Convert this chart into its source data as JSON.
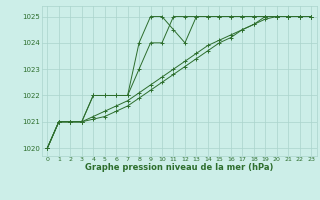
{
  "title": "Graphe pression niveau de la mer (hPa)",
  "bg_color": "#cceee8",
  "grid_color": "#aad4cc",
  "line_color": "#2d6e2d",
  "xlim": [
    -0.5,
    23.5
  ],
  "ylim": [
    1019.7,
    1025.4
  ],
  "yticks": [
    1020,
    1021,
    1022,
    1023,
    1024,
    1025
  ],
  "xticks": [
    0,
    1,
    2,
    3,
    4,
    5,
    6,
    7,
    8,
    9,
    10,
    11,
    12,
    13,
    14,
    15,
    16,
    17,
    18,
    19,
    20,
    21,
    22,
    23
  ],
  "series": [
    [
      1020.0,
      1021.0,
      1021.0,
      1021.0,
      1022.0,
      1022.0,
      1022.0,
      1022.0,
      1024.0,
      1025.0,
      1025.0,
      1024.5,
      1024.0,
      1025.0,
      1025.0,
      1025.0,
      1025.0,
      1025.0,
      1025.0,
      1025.0,
      1025.0,
      1025.0,
      1025.0,
      1025.0
    ],
    [
      1020.0,
      1021.0,
      1021.0,
      1021.0,
      1022.0,
      1022.0,
      1022.0,
      1022.0,
      1023.0,
      1024.0,
      1024.0,
      1025.0,
      1025.0,
      1025.0,
      1025.0,
      1025.0,
      1025.0,
      1025.0,
      1025.0,
      1025.0,
      1025.0,
      1025.0,
      1025.0,
      1025.0
    ],
    [
      1020.0,
      1021.0,
      1021.0,
      1021.0,
      1021.2,
      1021.4,
      1021.6,
      1021.8,
      1022.1,
      1022.4,
      1022.7,
      1023.0,
      1023.3,
      1023.6,
      1023.9,
      1024.1,
      1024.3,
      1024.5,
      1024.7,
      1024.9,
      1025.0,
      1025.0,
      1025.0,
      1025.0
    ],
    [
      1020.0,
      1021.0,
      1021.0,
      1021.0,
      1021.1,
      1021.2,
      1021.4,
      1021.6,
      1021.9,
      1022.2,
      1022.5,
      1022.8,
      1023.1,
      1023.4,
      1023.7,
      1024.0,
      1024.2,
      1024.5,
      1024.7,
      1025.0,
      1025.0,
      1025.0,
      1025.0,
      1025.0
    ]
  ]
}
